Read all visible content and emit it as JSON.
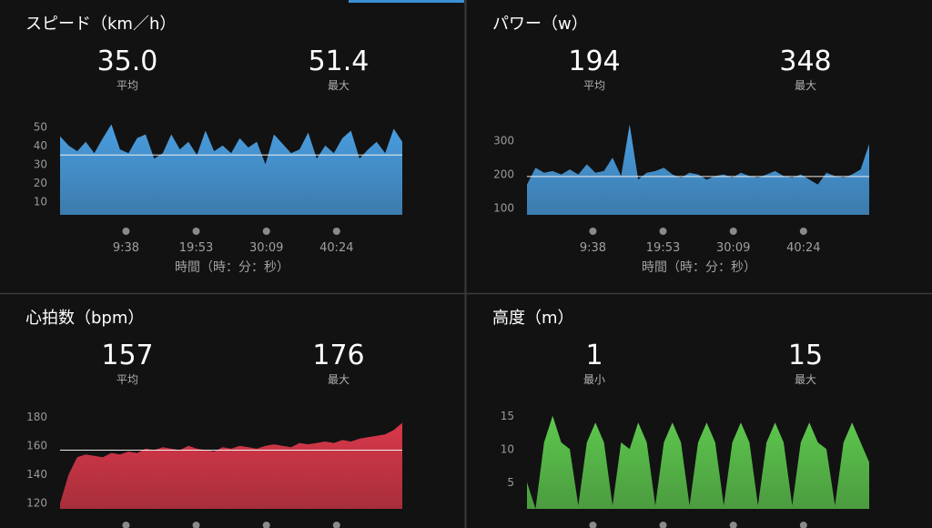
{
  "chart_data": [
    {
      "type": "area",
      "title": "スピード（km／h）",
      "stats": {
        "values": [
          35.0,
          51.4
        ],
        "value_labels": [
          "35.0",
          "51.4"
        ],
        "labels": [
          "平均",
          "最大"
        ]
      },
      "avg_line": true,
      "color": "#4a9ee0",
      "xlim": [
        0,
        3000
      ],
      "xticks": [
        {
          "value": 578,
          "label": "9:38"
        },
        {
          "value": 1193,
          "label": "19:53"
        },
        {
          "value": 1809,
          "label": "30:09"
        },
        {
          "value": 2424,
          "label": "40:24"
        }
      ],
      "x_label": "時間（時：分：秒）",
      "ylim": [
        3,
        57
      ],
      "yticks": [
        10,
        20,
        30,
        40,
        50
      ],
      "x": [
        0,
        75,
        150,
        225,
        300,
        375,
        450,
        525,
        600,
        675,
        750,
        825,
        900,
        975,
        1050,
        1125,
        1200,
        1275,
        1350,
        1425,
        1500,
        1575,
        1650,
        1725,
        1800,
        1875,
        1950,
        2025,
        2100,
        2175,
        2250,
        2325,
        2400,
        2475,
        2550,
        2625,
        2700,
        2775,
        2850,
        2925,
        3000
      ],
      "values": [
        45,
        40,
        37,
        42,
        36,
        44,
        51.4,
        38,
        36,
        44,
        46,
        33,
        36,
        46,
        38,
        42,
        35,
        48,
        37,
        40,
        36,
        44,
        39,
        42,
        30,
        46,
        41,
        36,
        38,
        47,
        33,
        40,
        36,
        44,
        48,
        33,
        38,
        42,
        36,
        49,
        42
      ]
    },
    {
      "type": "area",
      "title": "パワー（w）",
      "stats": {
        "values": [
          194,
          348
        ],
        "labels": [
          "平均",
          "最大"
        ]
      },
      "avg_line": true,
      "color": "#4a9ee0",
      "xlim": [
        0,
        3000
      ],
      "xticks": [
        {
          "value": 578,
          "label": "9:38"
        },
        {
          "value": 1193,
          "label": "19:53"
        },
        {
          "value": 1809,
          "label": "30:09"
        },
        {
          "value": 2424,
          "label": "40:24"
        }
      ],
      "x_label": "時間（時：分：秒）",
      "ylim": [
        80,
        380
      ],
      "yticks": [
        100,
        200,
        300
      ],
      "x": [
        0,
        75,
        150,
        225,
        300,
        375,
        450,
        525,
        600,
        675,
        750,
        825,
        900,
        975,
        1050,
        1125,
        1200,
        1275,
        1350,
        1425,
        1500,
        1575,
        1650,
        1725,
        1800,
        1875,
        1950,
        2025,
        2100,
        2175,
        2250,
        2325,
        2400,
        2475,
        2550,
        2625,
        2700,
        2775,
        2850,
        2925,
        3000
      ],
      "values": [
        170,
        220,
        205,
        210,
        200,
        215,
        200,
        230,
        205,
        210,
        250,
        195,
        348,
        185,
        205,
        210,
        220,
        200,
        190,
        205,
        200,
        185,
        195,
        200,
        190,
        205,
        195,
        190,
        200,
        210,
        195,
        190,
        200,
        185,
        170,
        205,
        195,
        190,
        200,
        215,
        290
      ]
    },
    {
      "type": "area",
      "title": "心拍数（bpm）",
      "stats": {
        "values": [
          157,
          176
        ],
        "labels": [
          "平均",
          "最大"
        ]
      },
      "avg_line": true,
      "color": "#d9384a",
      "xlim": [
        0,
        3000
      ],
      "xticks": [
        578,
        1193,
        1809,
        2424
      ],
      "ylim": [
        116,
        186.5
      ],
      "yticks": [
        120,
        140,
        160,
        180
      ],
      "x": [
        0,
        75,
        150,
        225,
        300,
        375,
        450,
        525,
        600,
        675,
        750,
        825,
        900,
        975,
        1050,
        1125,
        1200,
        1275,
        1350,
        1425,
        1500,
        1575,
        1650,
        1725,
        1800,
        1875,
        1950,
        2025,
        2100,
        2175,
        2250,
        2325,
        2400,
        2475,
        2550,
        2625,
        2700,
        2775,
        2850,
        2925,
        3000
      ],
      "values": [
        120,
        140,
        152,
        154,
        153,
        152,
        155,
        154,
        156,
        155,
        158,
        157,
        159,
        158,
        157,
        160,
        158,
        157,
        156,
        159,
        158,
        160,
        159,
        158,
        160,
        161,
        160,
        159,
        162,
        161,
        162,
        163,
        162,
        164,
        163,
        165,
        166,
        167,
        168,
        171,
        176
      ]
    },
    {
      "type": "area",
      "title": "高度（m）",
      "stats": {
        "values": [
          1,
          15
        ],
        "labels": [
          "最小",
          "最大"
        ]
      },
      "avg_line": false,
      "color": "#5ec94e",
      "xlim": [
        0,
        3000
      ],
      "xticks": [
        578,
        1193,
        1809,
        2424
      ],
      "ylim": [
        1,
        16.2
      ],
      "yticks": [
        5,
        10,
        15
      ],
      "x": [
        0,
        75,
        150,
        225,
        300,
        375,
        450,
        525,
        600,
        675,
        750,
        825,
        900,
        975,
        1050,
        1125,
        1200,
        1275,
        1350,
        1425,
        1500,
        1575,
        1650,
        1725,
        1800,
        1875,
        1950,
        2025,
        2100,
        2175,
        2250,
        2325,
        2400,
        2475,
        2550,
        2625,
        2700,
        2775,
        2850,
        2925,
        3000
      ],
      "values": [
        5,
        1,
        11,
        15,
        11,
        10,
        1.5,
        11,
        14,
        11,
        1.5,
        11,
        10,
        14,
        11,
        1.5,
        11,
        14,
        11,
        1.5,
        11,
        14,
        11,
        1.5,
        11,
        14,
        11,
        1.5,
        11,
        14,
        11,
        1.5,
        11,
        14,
        11,
        10,
        1.5,
        11,
        14,
        11,
        8
      ]
    }
  ]
}
